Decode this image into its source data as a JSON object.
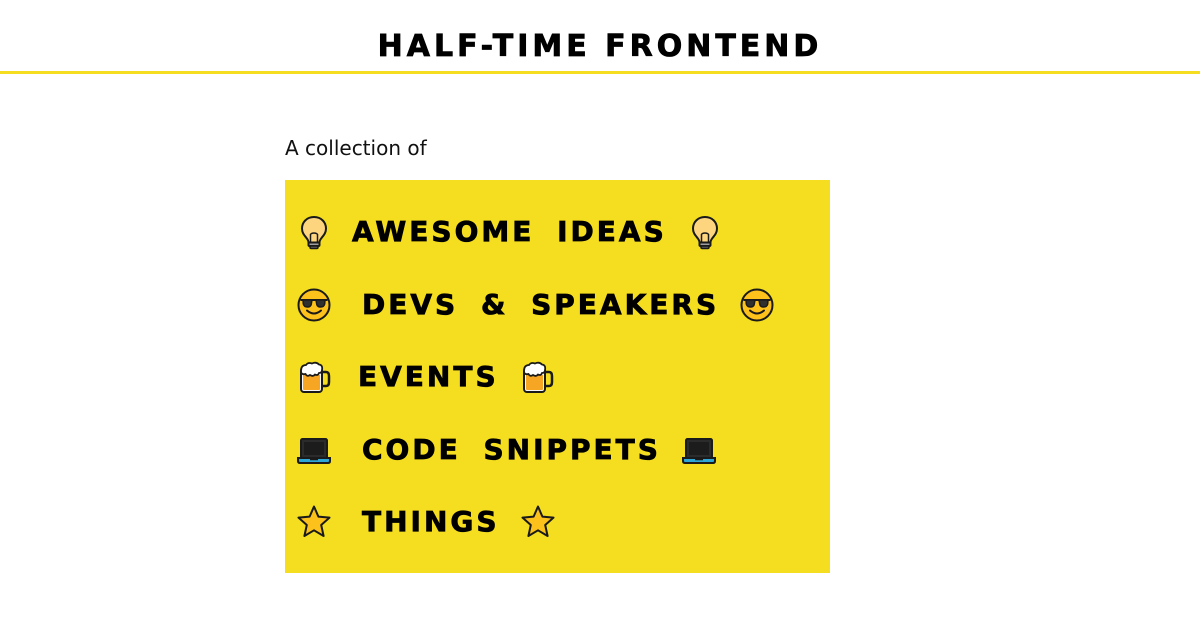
{
  "header": {
    "title": "HALF-TIME FRONTEND"
  },
  "intro": {
    "text": "A collection of"
  },
  "features": [
    {
      "label": "AWESOME IDEAS",
      "icon": "light-bulb-icon"
    },
    {
      "label": "DEVS & SPEAKERS",
      "icon": "smiling-face-sunglasses-icon"
    },
    {
      "label": "EVENTS",
      "icon": "beer-mug-icon"
    },
    {
      "label": "CODE SNIPPETS",
      "icon": "laptop-icon"
    },
    {
      "label": "THINGS",
      "icon": "star-icon"
    }
  ],
  "colors": {
    "accent": "#f5de1f",
    "text": "#000000",
    "background": "#ffffff"
  }
}
